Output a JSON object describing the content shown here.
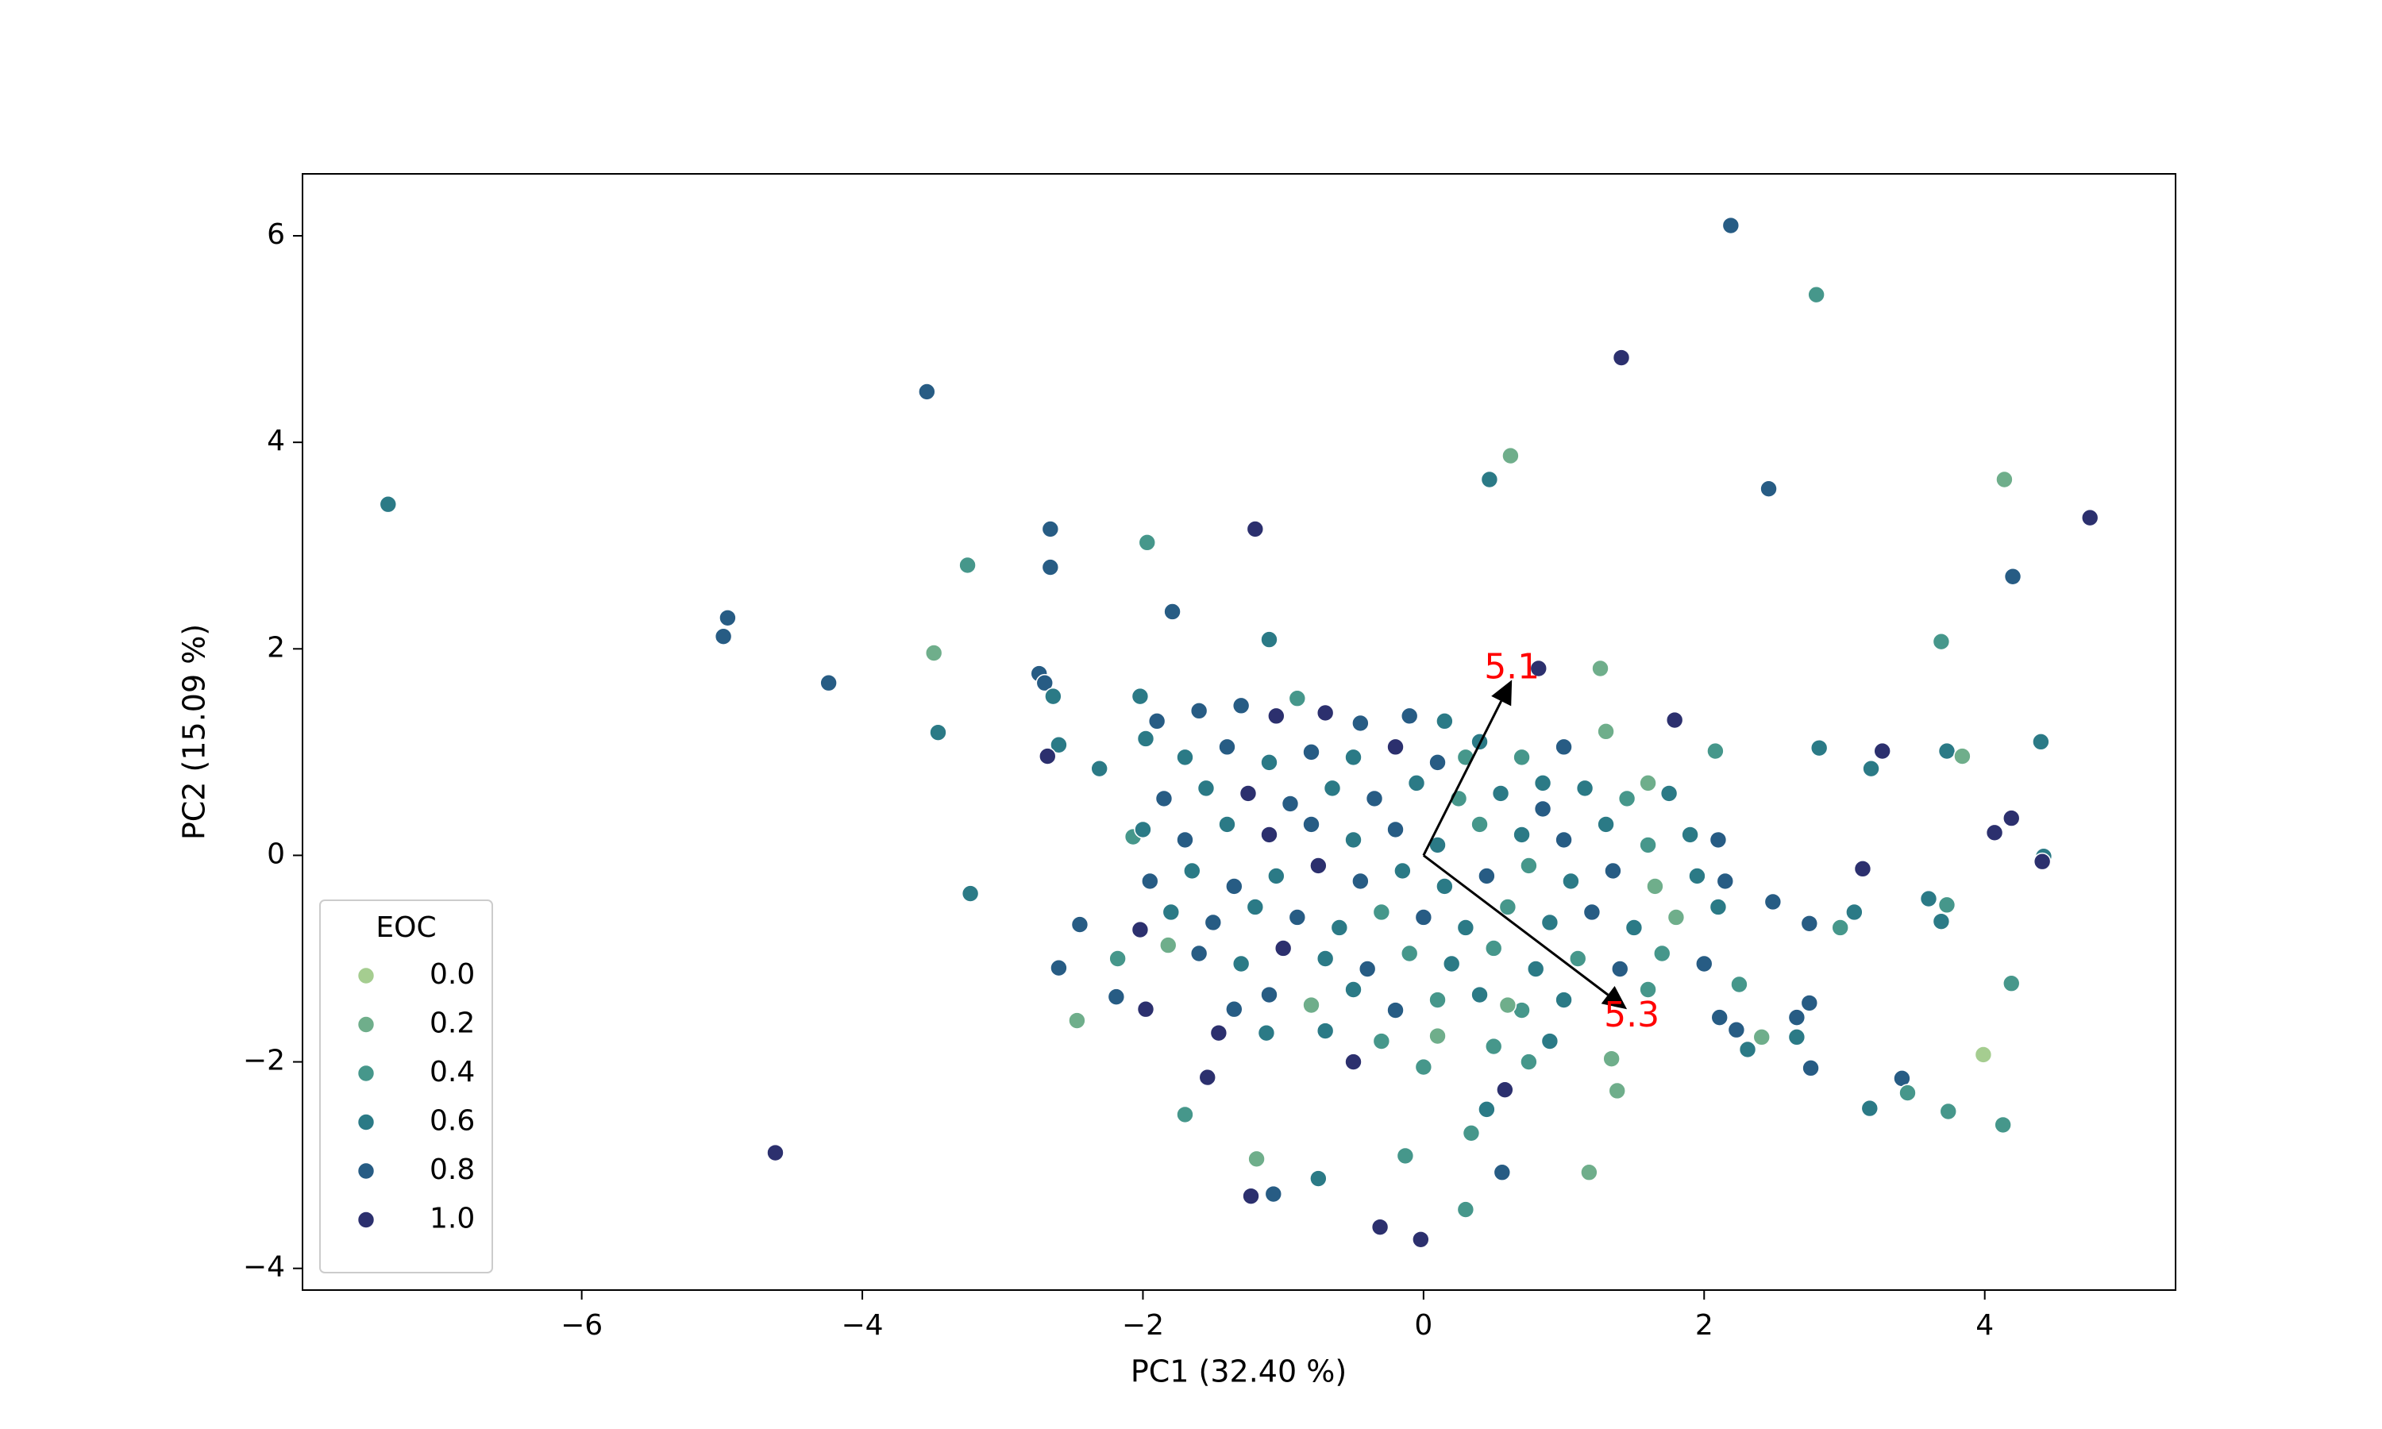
{
  "chart_data": {
    "type": "scatter",
    "x_label": "PC1 (32.40 %)",
    "y_label": "PC2 (15.09 %)",
    "xlim": [
      -7.99,
      5.36
    ],
    "ylim": [
      -4.21,
      6.6
    ],
    "xticks": [
      {
        "value": -6,
        "label": "−6"
      },
      {
        "value": -4,
        "label": "−4"
      },
      {
        "value": -2,
        "label": "−2"
      },
      0,
      2,
      4
    ],
    "yticks": [
      {
        "value": -4,
        "label": "−4"
      },
      {
        "value": -2,
        "label": "−2"
      },
      0,
      2,
      4,
      6
    ],
    "x": [
      -7.38,
      -3.54,
      -4.96,
      -4.99,
      -4.24,
      -4.62,
      -2.66,
      -2.66,
      -3.25,
      -3.49,
      -3.46,
      -3.23,
      -1.97,
      -1.2,
      -1.79,
      -1.1,
      -2.74,
      -2.7,
      -2.64,
      -2.6,
      -2.68,
      -2.31,
      2.19,
      2.8,
      1.41,
      0.62,
      0.47,
      2.46,
      4.14,
      4.75,
      4.2,
      3.69,
      3.73,
      3.84,
      3.27,
      3.19,
      4.4,
      4.19,
      4.07,
      4.42,
      4.41,
      2.82,
      2.08,
      1.79,
      1.26,
      0.82,
      3.13,
      3.6,
      3.73,
      3.69,
      3.07,
      2.97,
      2.75,
      2.49,
      4.19,
      3.99,
      3.41,
      3.45,
      3.18,
      3.74,
      4.13,
      2.76,
      2.75,
      2.66,
      2.66,
      2.41,
      2.31,
      2.23,
      2.11,
      2.25,
      1.18,
      1.38,
      1.34,
      0.56,
      0.3,
      -0.02,
      -0.31,
      -0.13,
      0.34,
      0.45,
      0.58,
      -0.75,
      -1.19,
      -1.23,
      -1.07,
      -1.7,
      -1.54,
      -1.46,
      -1.12,
      -1.35,
      -1.98,
      -2.19,
      -2.47,
      -2.6,
      -2.45,
      -2.18,
      -2.02,
      -1.82,
      -2.07,
      -1.98,
      -2.02,
      -1.6,
      -1.3,
      -1.05,
      -0.7,
      -0.45,
      -0.1,
      0.15,
      -0.9,
      -1.9,
      0.3,
      -1.7,
      -1.4,
      -1.1,
      -0.8,
      -0.5,
      -0.2,
      0.1,
      0.4,
      0.7,
      1.0,
      1.3,
      0.85,
      -1.85,
      -1.55,
      -1.25,
      -0.95,
      -0.65,
      -0.35,
      -0.05,
      0.25,
      0.55,
      0.85,
      1.15,
      1.45,
      1.75,
      1.6,
      -2.0,
      -1.7,
      -1.4,
      -1.1,
      -0.8,
      -0.5,
      -0.2,
      0.1,
      0.4,
      0.7,
      1.0,
      1.3,
      1.6,
      1.9,
      2.1,
      -1.95,
      -1.65,
      -1.35,
      -1.05,
      -0.75,
      -0.45,
      -0.15,
      0.15,
      0.45,
      0.75,
      1.05,
      1.35,
      1.65,
      1.95,
      2.15,
      -1.8,
      -1.5,
      -1.2,
      -0.9,
      -0.6,
      -0.3,
      0.0,
      0.3,
      0.6,
      0.9,
      1.2,
      1.5,
      1.8,
      2.1,
      -1.6,
      -1.3,
      -1.0,
      -0.7,
      -0.4,
      -0.1,
      0.2,
      0.5,
      0.8,
      1.1,
      1.4,
      1.7,
      2.0,
      -1.1,
      -0.8,
      -0.5,
      -0.2,
      0.1,
      0.4,
      0.7,
      1.0,
      1.6,
      0.6,
      -0.7,
      -0.3,
      0.1,
      0.5,
      0.9,
      -0.5,
      0.0,
      0.75
    ],
    "y": [
      3.4,
      4.49,
      2.3,
      2.12,
      1.67,
      -2.88,
      3.16,
      2.79,
      2.81,
      1.96,
      1.19,
      -0.37,
      3.03,
      3.16,
      2.36,
      2.09,
      1.76,
      1.67,
      1.54,
      1.07,
      0.96,
      0.84,
      6.1,
      5.43,
      4.82,
      3.87,
      3.64,
      3.55,
      3.64,
      3.27,
      2.7,
      2.07,
      1.01,
      0.96,
      1.01,
      0.84,
      1.1,
      0.36,
      0.22,
      -0.01,
      -0.06,
      1.04,
      1.01,
      1.31,
      1.81,
      1.81,
      -0.13,
      -0.42,
      -0.48,
      -0.64,
      -0.55,
      -0.7,
      -0.66,
      -0.45,
      -1.24,
      -1.93,
      -2.16,
      -2.3,
      -2.45,
      -2.48,
      -2.61,
      -2.06,
      -1.43,
      -1.57,
      -1.76,
      -1.76,
      -1.88,
      -1.69,
      -1.57,
      -1.25,
      -3.07,
      -2.28,
      -1.97,
      -3.07,
      -3.43,
      -3.72,
      -3.6,
      -2.91,
      -2.69,
      -2.46,
      -2.27,
      -3.13,
      -2.94,
      -3.3,
      -3.28,
      -2.51,
      -2.15,
      -1.72,
      -1.72,
      -1.49,
      -1.49,
      -1.37,
      -1.6,
      -1.09,
      -0.67,
      -1.0,
      -0.72,
      -0.87,
      0.18,
      1.13,
      1.54,
      1.4,
      1.45,
      1.35,
      1.38,
      1.28,
      1.35,
      1.3,
      1.52,
      1.3,
      0.95,
      0.95,
      1.05,
      0.9,
      1.0,
      0.95,
      1.05,
      0.9,
      1.1,
      0.95,
      1.05,
      1.2,
      0.7,
      0.55,
      0.65,
      0.6,
      0.5,
      0.65,
      0.55,
      0.7,
      0.55,
      0.6,
      0.45,
      0.65,
      0.55,
      0.6,
      0.7,
      0.25,
      0.15,
      0.3,
      0.2,
      0.3,
      0.15,
      0.25,
      0.1,
      0.3,
      0.2,
      0.15,
      0.3,
      0.1,
      0.2,
      0.15,
      -0.25,
      -0.15,
      -0.3,
      -0.2,
      -0.1,
      -0.25,
      -0.15,
      -0.3,
      -0.2,
      -0.1,
      -0.25,
      -0.15,
      -0.3,
      -0.2,
      -0.25,
      -0.55,
      -0.65,
      -0.5,
      -0.6,
      -0.7,
      -0.55,
      -0.6,
      -0.7,
      -0.5,
      -0.65,
      -0.55,
      -0.7,
      -0.6,
      -0.5,
      -0.95,
      -1.05,
      -0.9,
      -1.0,
      -1.1,
      -0.95,
      -1.05,
      -0.9,
      -1.1,
      -1.0,
      -1.1,
      -0.95,
      -1.05,
      -1.35,
      -1.45,
      -1.3,
      -1.5,
      -1.4,
      -1.35,
      -1.5,
      -1.4,
      -1.3,
      -1.45,
      -1.7,
      -1.8,
      -1.75,
      -1.85,
      -1.8,
      -2.0,
      -2.05,
      -2.0
    ],
    "hue": [
      0.6,
      0.8,
      0.8,
      0.8,
      0.8,
      1.0,
      0.8,
      0.8,
      0.4,
      0.2,
      0.6,
      0.6,
      0.4,
      1.0,
      0.8,
      0.6,
      0.8,
      0.8,
      0.6,
      0.6,
      1.0,
      0.6,
      0.8,
      0.4,
      1.0,
      0.2,
      0.6,
      0.8,
      0.2,
      1.0,
      0.8,
      0.4,
      0.6,
      0.2,
      1.0,
      0.6,
      0.6,
      1.0,
      1.0,
      0.6,
      1.0,
      0.6,
      0.4,
      1.0,
      0.2,
      1.0,
      1.0,
      0.6,
      0.4,
      0.6,
      0.6,
      0.4,
      0.8,
      0.8,
      0.4,
      0.0,
      0.8,
      0.4,
      0.6,
      0.4,
      0.4,
      0.8,
      0.8,
      0.8,
      0.6,
      0.2,
      0.6,
      0.8,
      0.8,
      0.4,
      0.2,
      0.2,
      0.2,
      0.8,
      0.4,
      1.0,
      1.0,
      0.4,
      0.4,
      0.6,
      1.0,
      0.6,
      0.2,
      1.0,
      0.8,
      0.4,
      1.0,
      1.0,
      0.6,
      0.8,
      1.0,
      0.8,
      0.2,
      0.8,
      0.8,
      0.4,
      1.0,
      0.2,
      0.4,
      0.6,
      0.6,
      0.8,
      0.8,
      1.0,
      1.0,
      0.8,
      0.8,
      0.6,
      0.4,
      0.8,
      0.4,
      0.6,
      0.8,
      0.6,
      0.8,
      0.6,
      1.0,
      0.8,
      0.6,
      0.4,
      0.8,
      0.2,
      0.6,
      0.8,
      0.6,
      1.0,
      0.8,
      0.6,
      0.8,
      0.6,
      0.4,
      0.6,
      0.8,
      0.6,
      0.4,
      0.6,
      0.2,
      0.6,
      0.8,
      0.6,
      1.0,
      0.8,
      0.6,
      0.8,
      0.6,
      0.4,
      0.6,
      0.8,
      0.6,
      0.4,
      0.6,
      0.8,
      0.8,
      0.6,
      0.8,
      0.6,
      1.0,
      0.8,
      0.6,
      0.6,
      0.8,
      0.4,
      0.6,
      0.8,
      0.2,
      0.6,
      0.8,
      0.6,
      0.8,
      0.6,
      0.8,
      0.6,
      0.4,
      0.8,
      0.6,
      0.4,
      0.6,
      0.8,
      0.6,
      0.2,
      0.6,
      0.8,
      0.6,
      1.0,
      0.6,
      0.8,
      0.4,
      0.6,
      0.4,
      0.6,
      0.4,
      0.8,
      0.4,
      0.8,
      0.8,
      0.2,
      0.6,
      0.8,
      0.4,
      0.6,
      0.4,
      0.6,
      0.4,
      0.2,
      0.6,
      0.4,
      0.2,
      0.4,
      0.6,
      1.0,
      0.4,
      0.4
    ],
    "legend_title": "EOC",
    "legend_levels": [
      {
        "value": 0,
        "label": "0.0"
      },
      0.2,
      0.4,
      0.6,
      0.8,
      {
        "value": 1,
        "label": "1.0"
      }
    ],
    "legend_colors": [
      "#a5cd90",
      "#6fae8b",
      "#46978b",
      "#2b7a86",
      "#275c84",
      "#2c306e"
    ],
    "legend_position": "lower left",
    "arrows": [
      {
        "label": "5.1",
        "x": 0.63,
        "y": 1.7
      },
      {
        "label": "5.3",
        "x": 1.45,
        "y": -1.49
      }
    ],
    "arrow_label_color": "#ff0000"
  }
}
